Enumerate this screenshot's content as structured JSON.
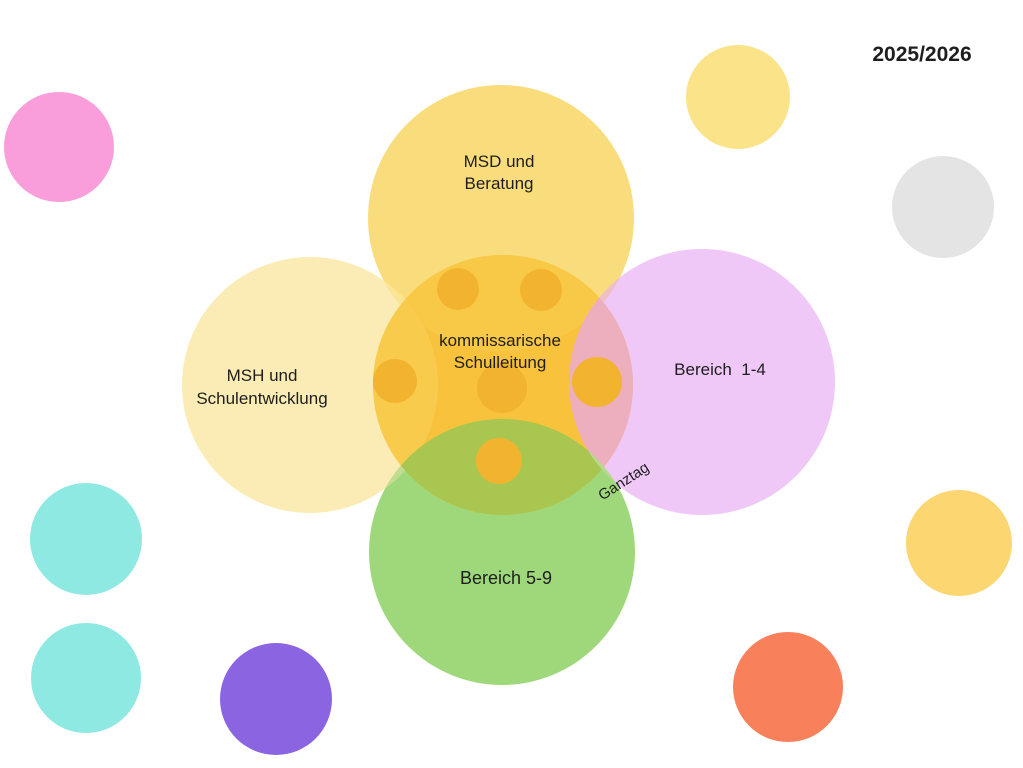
{
  "title": "2025/2026",
  "labels": {
    "msd": "MSD und\nBeratung",
    "msh": "MSH und\nSchulentwicklung",
    "schulleitung": "kommissarische\nSchulleitung",
    "bereich14": "Bereich  1-4",
    "bereich59": "Bereich 5-9",
    "ganztag": "Ganztag"
  },
  "colors": {
    "background": "#FFFFFF",
    "text": "#1E1E1E",
    "circle_msd": "#F9DD7D",
    "circle_msh": "#FAECB4",
    "circle_bereich14": "#EFC8F8",
    "circle_bereich59": "#9FD87B",
    "circle_schulleitung": "#F8C23C",
    "dot": "#F2B42F",
    "overlap_msd_msh": "#FAE593",
    "overlap_schulleitung_msd": "#F8C847",
    "overlap_schulleitung_msh": "#F8CB4C",
    "overlap_msd_bereich14": "#EFC0C5",
    "overlap_schulleitung_bereich14": "#EDAEBD",
    "overlap_bereich59_msh": "#C3DD90",
    "overlap_schulleitung_bereich59": "#A8C650",
    "overlap_bereich59_bereich14": "#B9D88F",
    "deco_pink": "#FA9DDB",
    "deco_yellow_top": "#FBE38A",
    "deco_gray": "#E5E4E4",
    "deco_yellow_right": "#FBD671",
    "deco_coral": "#F8815C",
    "deco_purple": "#8B64E1",
    "deco_cyan": "#8FE9E3"
  }
}
